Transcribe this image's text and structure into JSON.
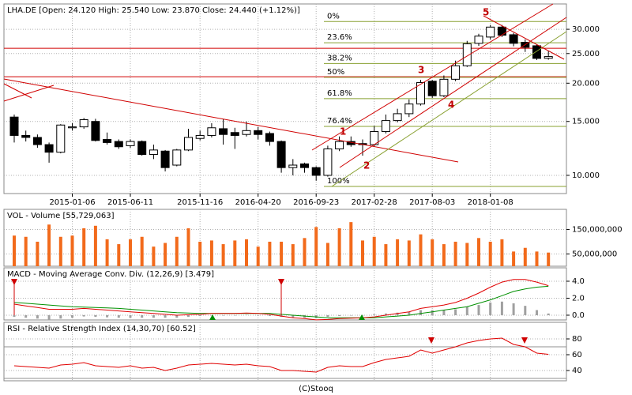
{
  "chart_data": [
    {
      "type": "candlestick",
      "title": "LHA.DE [Open: 24.120  High: 25.540  Low: 23.870  Close: 24.440  (+1.12%)]",
      "log": true,
      "grid": true,
      "up_color": "#ffffff",
      "down_color": "#000000",
      "categories": [
        null,
        null,
        null,
        null,
        null,
        "2015-01-06",
        null,
        null,
        null,
        null,
        "2015-06-11",
        null,
        null,
        null,
        null,
        null,
        "2015-11-16",
        null,
        null,
        null,
        null,
        "2016-04-20",
        null,
        null,
        null,
        null,
        "2016-09-23",
        null,
        null,
        null,
        null,
        "2017-02-28",
        null,
        null,
        null,
        null,
        "2017-08-03",
        null,
        null,
        null,
        null,
        "2018-01-08",
        null,
        null,
        null,
        null,
        null
      ],
      "open": [
        15.5,
        13.5,
        13.3,
        12.6,
        11.9,
        14.3,
        14.4,
        15.0,
        13.1,
        12.9,
        12.5,
        12.9,
        11.7,
        12.0,
        10.8,
        12.1,
        13.2,
        13.5,
        14.2,
        13.8,
        13.6,
        14.0,
        13.7,
        12.9,
        10.6,
        10.9,
        10.6,
        10.0,
        12.2,
        12.9,
        12.7,
        12.6,
        13.9,
        15.1,
        15.9,
        17.1,
        20.3,
        18.2,
        20.6,
        22.8,
        27.0,
        28.3,
        30.5,
        28.8,
        27.2,
        26.5,
        24.12
      ],
      "high": [
        15.8,
        14.0,
        13.6,
        12.8,
        14.7,
        14.8,
        15.4,
        15.3,
        13.8,
        13.1,
        13.1,
        13.0,
        12.6,
        12.1,
        12.2,
        14.2,
        14.0,
        14.8,
        15.3,
        14.3,
        15.0,
        14.4,
        13.9,
        13.0,
        11.3,
        11.0,
        10.7,
        12.5,
        13.4,
        13.4,
        13.1,
        14.5,
        15.8,
        16.5,
        17.7,
        20.5,
        20.5,
        21.2,
        23.7,
        27.5,
        29.0,
        31.0,
        31.0,
        29.2,
        27.8,
        26.8,
        25.54
      ],
      "low": [
        12.8,
        12.9,
        12.3,
        11.0,
        11.8,
        14.0,
        14.2,
        12.9,
        12.6,
        12.2,
        12.3,
        11.6,
        11.3,
        10.3,
        10.7,
        12.0,
        13.0,
        13.3,
        12.6,
        12.2,
        13.4,
        13.1,
        12.5,
        10.2,
        10.0,
        10.2,
        9.6,
        9.9,
        12.0,
        12.4,
        11.6,
        12.4,
        13.7,
        14.9,
        15.5,
        16.9,
        17.9,
        18.0,
        20.3,
        22.6,
        26.5,
        27.8,
        28.3,
        26.4,
        25.3,
        23.8,
        23.87
      ],
      "close": [
        13.5,
        13.3,
        12.6,
        11.9,
        14.6,
        14.4,
        15.2,
        13.0,
        12.8,
        12.4,
        12.9,
        11.7,
        12.1,
        10.6,
        12.1,
        13.3,
        13.5,
        14.3,
        13.6,
        13.5,
        14.0,
        13.6,
        12.9,
        10.6,
        10.8,
        10.6,
        10.0,
        12.2,
        12.9,
        12.6,
        12.6,
        13.9,
        15.1,
        15.9,
        17.1,
        20.1,
        18.2,
        20.6,
        22.8,
        26.9,
        28.5,
        30.5,
        28.7,
        27.0,
        26.2,
        24.1,
        24.44
      ],
      "ylim": [
        8.72,
        36.3
      ],
      "yticks": [
        {
          "value": 10,
          "label": "10.000"
        },
        {
          "value": 15,
          "label": "15.000"
        },
        {
          "value": 20,
          "label": "20.000"
        },
        {
          "value": 25,
          "label": "25.000"
        },
        {
          "value": 30,
          "label": "30.000"
        }
      ],
      "hlines": [
        26.0,
        21.0
      ],
      "hline_color": "#d00000",
      "fib_color": "#88a030",
      "fib_levels": [
        {
          "label": "0%",
          "value": 31.8
        },
        {
          "label": "23.6%",
          "value": 27.1
        },
        {
          "label": "38.2%",
          "value": 23.2
        },
        {
          "label": "50%",
          "value": 20.9
        },
        {
          "label": "61.8%",
          "value": 17.8
        },
        {
          "label": "76.4%",
          "value": 14.45
        },
        {
          "label": "100%",
          "value": 9.2
        }
      ],
      "wave_labels": [
        "1",
        "2",
        "3",
        "4",
        "5"
      ]
    },
    {
      "type": "bar",
      "title": "VOL - Volume [55,729,063]",
      "color": "#f26a1b",
      "grid": true,
      "values": [
        125000000,
        120000000,
        100000000,
        170000000,
        120000000,
        125000000,
        155000000,
        165000000,
        110000000,
        90000000,
        110000000,
        120000000,
        80000000,
        95000000,
        120000000,
        155000000,
        100000000,
        105000000,
        90000000,
        105000000,
        110000000,
        80000000,
        100000000,
        100000000,
        90000000,
        115000000,
        160000000,
        95000000,
        155000000,
        180000000,
        105000000,
        120000000,
        90000000,
        110000000,
        105000000,
        130000000,
        110000000,
        90000000,
        100000000,
        95000000,
        115000000,
        100000000,
        110000000,
        60000000,
        75000000,
        60000000,
        55729063
      ],
      "ylim": [
        0,
        232000000
      ],
      "yticks": [
        {
          "value": 150000000,
          "label": "150,000,000"
        },
        {
          "value": 50000000,
          "label": "50,000,000"
        }
      ]
    },
    {
      "type": "line",
      "title": "MACD - Moving Average Conv. Div. (12,26,9) [3.479]",
      "grid": true,
      "series": [
        {
          "style": "bar",
          "color": "#a0a0a0",
          "values": [
            -0.2,
            -0.3,
            -0.4,
            -0.5,
            -0.4,
            -0.3,
            -0.15,
            -0.2,
            -0.25,
            -0.3,
            -0.3,
            -0.3,
            -0.3,
            -0.3,
            -0.3,
            -0.2,
            -0.1,
            0,
            0,
            0,
            0.05,
            0,
            -0.1,
            -0.2,
            -0.3,
            -0.3,
            -0.35,
            -0.2,
            -0.1,
            -0.05,
            0,
            0.1,
            0.2,
            0.3,
            0.4,
            0.6,
            0.6,
            0.6,
            0.7,
            1.0,
            1.2,
            1.5,
            1.6,
            1.4,
            1.1,
            0.6,
            0.2
          ]
        },
        {
          "style": "line",
          "color": "#009000",
          "values": [
            1.5,
            1.4,
            1.3,
            1.2,
            1.1,
            1.0,
            0.95,
            0.9,
            0.85,
            0.8,
            0.7,
            0.6,
            0.5,
            0.4,
            0.3,
            0.25,
            0.2,
            0.2,
            0.2,
            0.2,
            0.2,
            0.2,
            0.2,
            0.1,
            0.0,
            -0.1,
            -0.2,
            -0.3,
            -0.3,
            -0.3,
            -0.3,
            -0.3,
            -0.2,
            -0.1,
            0.0,
            0.2,
            0.4,
            0.6,
            0.8,
            1.0,
            1.4,
            1.8,
            2.3,
            2.8,
            3.1,
            3.3,
            3.4
          ]
        },
        {
          "style": "line",
          "color": "#e00000",
          "values": [
            1.3,
            1.1,
            0.9,
            0.7,
            0.7,
            0.7,
            0.8,
            0.7,
            0.6,
            0.5,
            0.4,
            0.3,
            0.2,
            0.1,
            0.0,
            0.05,
            0.1,
            0.2,
            0.2,
            0.2,
            0.25,
            0.2,
            0.1,
            -0.1,
            -0.3,
            -0.4,
            -0.55,
            -0.5,
            -0.4,
            -0.35,
            -0.3,
            -0.2,
            0.0,
            0.2,
            0.4,
            0.8,
            1.0,
            1.2,
            1.5,
            2.0,
            2.6,
            3.3,
            3.9,
            4.2,
            4.2,
            3.9,
            3.479
          ]
        }
      ],
      "ylim": [
        -0.56,
        5.58
      ],
      "yticks": [
        {
          "value": 4,
          "label": "4.0"
        },
        {
          "value": 2,
          "label": "2.0"
        },
        {
          "value": 0,
          "label": "0.0"
        }
      ]
    },
    {
      "type": "line",
      "title": "RSI - Relative Strength Index (14,30,70) [60.52]",
      "grid": true,
      "series": [
        {
          "style": "line",
          "color": "#e00000",
          "values": [
            46,
            45,
            44,
            43,
            47,
            48,
            50,
            46,
            45,
            44,
            46,
            43,
            44,
            40,
            43,
            47,
            48,
            49,
            48,
            47,
            48,
            46,
            45,
            40,
            40,
            39,
            38,
            44,
            46,
            45,
            45,
            50,
            54,
            56,
            58,
            66,
            62,
            66,
            70,
            75,
            78,
            80,
            81,
            73,
            70,
            62,
            60.52
          ]
        }
      ],
      "hlines": [
        70,
        30
      ],
      "hline_color": "#909090",
      "ylim": [
        27,
        101
      ],
      "yticks": [
        80,
        60,
        40
      ]
    }
  ],
  "footer": "(C)Stooq"
}
